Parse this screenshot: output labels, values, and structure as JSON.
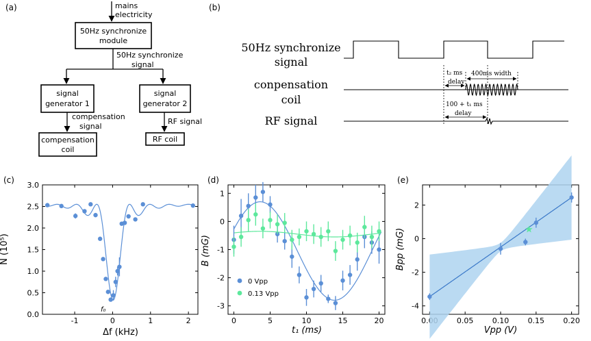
{
  "panels": {
    "a": "(a)",
    "b": "(b)",
    "c": "(c)",
    "d": "(d)",
    "e": "(e)"
  },
  "diagram_a": {
    "mains_l1": "mains",
    "mains_l2": "electricity",
    "sync_l1": "50Hz synchronize",
    "sync_l2": "module",
    "sig_l1": "50Hz synchronize",
    "sig_l2": "signal",
    "gen1_l1": "signal",
    "gen1_l2": "generator 1",
    "gen2_l1": "signal",
    "gen2_l2": "generator 2",
    "comp_sig_l1": "compensation",
    "comp_sig_l2": "signal",
    "rf_sig": "RF signal",
    "comp_coil_l1": "compensation",
    "comp_coil_l2": "coil",
    "rf_coil": "RF coil"
  },
  "diagram_b": {
    "sync_l1": "50Hz synchronize",
    "sync_l2": "signal",
    "comp_l1": "conpensation",
    "comp_l2": "coil",
    "rf": "RF signal",
    "t2_l1": "t₂ ms",
    "t2_l2": "delay",
    "width": "400ms width",
    "t1_l1": "100 + t₁ ms",
    "t1_l2": "delay"
  },
  "chart_data": [
    {
      "type": "scatter",
      "panel": "c",
      "xlabel": "Δf (kHz)",
      "ylabel": "N (10⁵)",
      "xlim": [
        -1.85,
        2.25
      ],
      "ylim": [
        0,
        3.0
      ],
      "xticks": [
        -1,
        0,
        1,
        2
      ],
      "yticks": [
        0.0,
        0.5,
        1.0,
        1.5,
        2.0,
        2.5,
        3.0
      ],
      "annotation": "f₀",
      "series": [
        {
          "color": "#5b8fd6",
          "x": [
            -1.72,
            -1.35,
            -0.98,
            -0.74,
            -0.58,
            -0.45,
            -0.33,
            -0.25,
            -0.18,
            -0.12,
            -0.05,
            0.02,
            0.08,
            0.13,
            0.18,
            0.24,
            0.32,
            0.42,
            0.6,
            0.8,
            2.12
          ],
          "y": [
            2.53,
            2.51,
            2.28,
            2.39,
            2.55,
            2.3,
            1.75,
            1.28,
            0.82,
            0.52,
            0.34,
            0.44,
            0.75,
            1.0,
            1.1,
            2.1,
            2.12,
            2.27,
            2.2,
            2.55,
            2.52
          ],
          "err": [
            0,
            0,
            0.06,
            0,
            0,
            0.05,
            0,
            0,
            0,
            0,
            0,
            0.12,
            0.12,
            0.1,
            0.22,
            0,
            0,
            0,
            0,
            0,
            0
          ]
        }
      ]
    },
    {
      "type": "scatter",
      "panel": "d",
      "xlabel": "t₁ (ms)",
      "ylabel": "B (mG)",
      "xlim": [
        -0.8,
        20.8
      ],
      "ylim": [
        -3.3,
        1.3
      ],
      "xticks": [
        0,
        5,
        10,
        15,
        20
      ],
      "yticks": [
        -3,
        -2,
        -1,
        0,
        1
      ],
      "legend": "bottom-left",
      "series": [
        {
          "name": "0 Vpp",
          "color": "#5b8fd6",
          "x": [
            0,
            1,
            2,
            3,
            4,
            5,
            6,
            7,
            8,
            9,
            10,
            11,
            12,
            13,
            14,
            15,
            16,
            17,
            18,
            19,
            20
          ],
          "y": [
            -0.65,
            0.2,
            0.55,
            0.85,
            1.05,
            0.6,
            -0.45,
            -0.7,
            -1.25,
            -1.9,
            -2.7,
            -2.4,
            -2.2,
            -2.75,
            -2.9,
            -2.1,
            -1.9,
            -1.35,
            -0.55,
            -0.75,
            -1.0
          ],
          "err": [
            0.5,
            0.6,
            0.45,
            0.45,
            0.35,
            0.3,
            0.3,
            0.3,
            0.4,
            0.3,
            0.3,
            0.3,
            0.3,
            0.15,
            0.25,
            0.35,
            0.35,
            0.4,
            0.4,
            0.4,
            0.5
          ]
        },
        {
          "name": "0.13 Vpp",
          "color": "#5de89c",
          "x": [
            0,
            1,
            2,
            3,
            4,
            5,
            6,
            7,
            8,
            9,
            10,
            11,
            12,
            13,
            14,
            15,
            16,
            17,
            18,
            19,
            20
          ],
          "y": [
            -0.9,
            -0.55,
            0.05,
            0.25,
            -0.25,
            0.05,
            -0.1,
            -0.05,
            -0.65,
            -0.55,
            -0.35,
            -0.45,
            -0.55,
            -0.35,
            -1.05,
            -0.65,
            -0.5,
            -0.75,
            -0.2,
            -0.55,
            -0.35
          ],
          "err": [
            0.35,
            0.35,
            0.4,
            0.4,
            0.35,
            0.3,
            0.35,
            0.35,
            0.35,
            0.3,
            0.35,
            0.35,
            0.35,
            0.35,
            0.35,
            0.35,
            0.35,
            0.35,
            0.4,
            0.4,
            0.35
          ]
        }
      ]
    },
    {
      "type": "scatter",
      "panel": "e",
      "xlabel": "Vpp (V)",
      "ylabel": "Bpp (mG)",
      "xlim": [
        -0.01,
        0.21
      ],
      "ylim": [
        -4.5,
        3.2
      ],
      "xticks": [
        0.0,
        0.05,
        0.1,
        0.15,
        0.2
      ],
      "yticks": [
        -4,
        -2,
        0,
        2
      ],
      "series": [
        {
          "color": "#5b8fd6",
          "x": [
            0.0,
            0.1,
            0.135,
            0.15,
            0.2
          ],
          "y": [
            -3.45,
            -0.6,
            -0.2,
            0.95,
            2.45
          ],
          "err": [
            0.2,
            0.35,
            0.2,
            0.3,
            0.3
          ]
        },
        {
          "color": "#5de89c",
          "marker": "star",
          "x": [
            0.14
          ],
          "y": [
            0.55
          ]
        }
      ]
    }
  ]
}
